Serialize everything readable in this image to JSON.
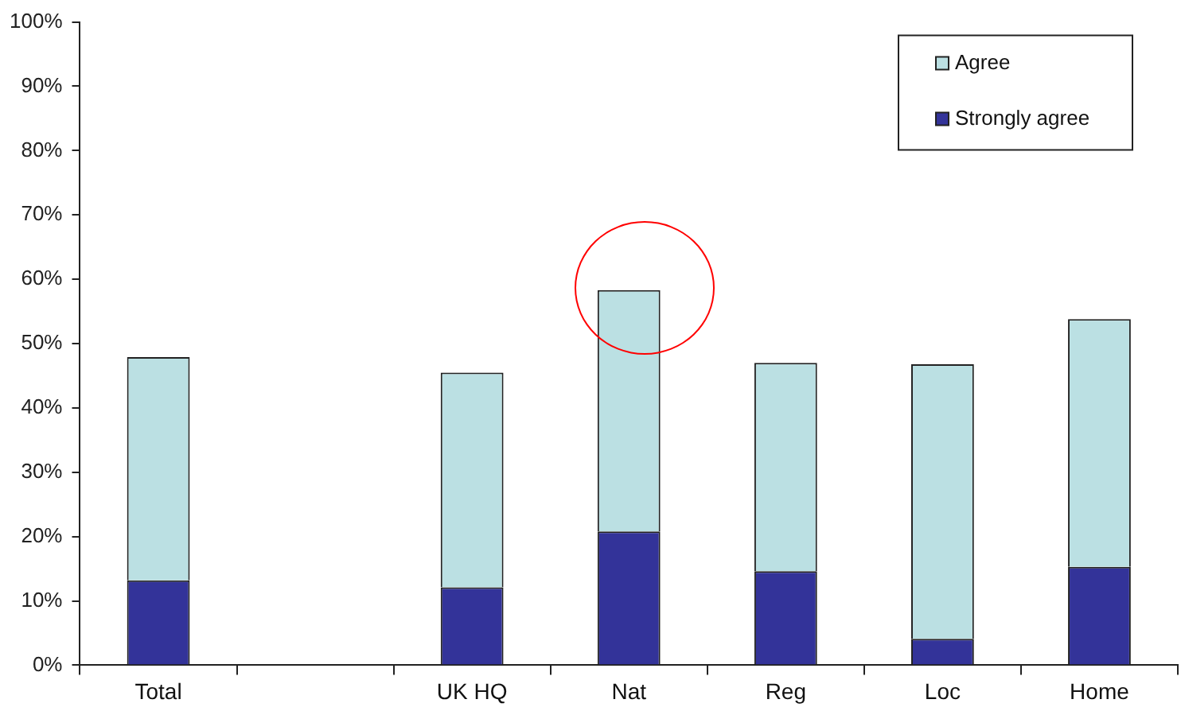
{
  "chart_data": {
    "type": "bar",
    "stacked": true,
    "legend": "top right",
    "grid": false,
    "categories": [
      "Total",
      null,
      "UK HQ",
      "Nat",
      "Reg",
      "Loc",
      "Home"
    ],
    "series": [
      {
        "name": "Strongly agree",
        "color": "#333399",
        "values": [
          13.2,
          null,
          12.1,
          20.8,
          14.6,
          4.1,
          15.3
        ]
      },
      {
        "name": "Agree",
        "color": "#bbe0e3",
        "values": [
          34.7,
          null,
          33.4,
          37.5,
          32.4,
          42.7,
          38.5
        ]
      }
    ],
    "ylim": [
      0,
      100
    ],
    "yticks": [
      {
        "value": 0,
        "label": "0%"
      },
      {
        "value": 10,
        "label": "10%"
      },
      {
        "value": 20,
        "label": "20%"
      },
      {
        "value": 30,
        "label": "30%"
      },
      {
        "value": 40,
        "label": "40%"
      },
      {
        "value": 50,
        "label": "50%"
      },
      {
        "value": 60,
        "label": "60%"
      },
      {
        "value": 70,
        "label": "70%"
      },
      {
        "value": 80,
        "label": "80%"
      },
      {
        "value": 90,
        "label": "90%"
      },
      {
        "value": 100,
        "label": "100%"
      }
    ]
  }
}
